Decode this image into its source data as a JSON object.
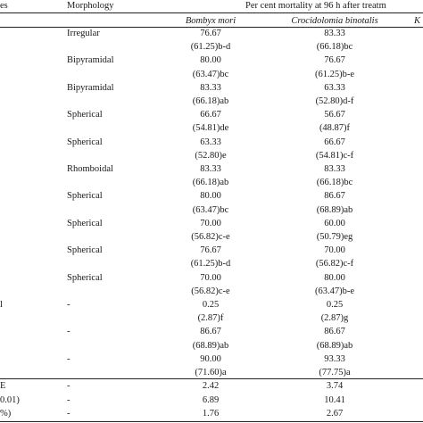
{
  "header": {
    "col0": "es",
    "col1": "Morphology",
    "col_span": "Per cent mortality at 96 h after treatm",
    "sub1": "Bombyx mori",
    "sub2": "Crocidolomia binotalis",
    "sub3": "K"
  },
  "rows": [
    {
      "label": "",
      "morph": "Irregular",
      "bm": "76.67",
      "cb": "83.33"
    },
    {
      "label": "",
      "morph": "",
      "bm": "(61.25)b-d",
      "cb": "(66.18)bc"
    },
    {
      "label": "",
      "morph": "Bipyramidal",
      "bm": "80.00",
      "cb": "76.67"
    },
    {
      "label": "",
      "morph": "",
      "bm": "(63.47)bc",
      "cb": "(61.25)b-e"
    },
    {
      "label": "",
      "morph": "Bipyramidal",
      "bm": "83.33",
      "cb": "63.33"
    },
    {
      "label": "",
      "morph": "",
      "bm": "(66.18)ab",
      "cb": "(52.80)d-f"
    },
    {
      "label": "",
      "morph": "Spherical",
      "bm": "66.67",
      "cb": "56.67"
    },
    {
      "label": "",
      "morph": "",
      "bm": "(54.81)de",
      "cb": "(48.87)f"
    },
    {
      "label": "",
      "morph": "Spherical",
      "bm": "63.33",
      "cb": "66.67"
    },
    {
      "label": "",
      "morph": "",
      "bm": "(52.80)e",
      "cb": "(54.81)c-f"
    },
    {
      "label": "",
      "morph": "Rhomboidal",
      "bm": "83.33",
      "cb": "83.33"
    },
    {
      "label": "",
      "morph": "",
      "bm": "(66.18)ab",
      "cb": "(66.18)bc"
    },
    {
      "label": "",
      "morph": "Spherical",
      "bm": "80.00",
      "cb": "86.67"
    },
    {
      "label": "",
      "morph": "",
      "bm": "(63.47)bc",
      "cb": "(68.89)ab"
    },
    {
      "label": "",
      "morph": "Spherical",
      "bm": "70.00",
      "cb": "60.00"
    },
    {
      "label": "",
      "morph": "",
      "bm": "(56.82)c-e",
      "cb": "(50.79)eg"
    },
    {
      "label": "",
      "morph": "Spherical",
      "bm": "76.67",
      "cb": "70.00"
    },
    {
      "label": "",
      "morph": "",
      "bm": "(61.25)b-d",
      "cb": "(56.82)c-f"
    },
    {
      "label": "",
      "morph": "Spherical",
      "bm": "70.00",
      "cb": "80.00"
    },
    {
      "label": "",
      "morph": "",
      "bm": "(56.82)c-e",
      "cb": "(63.47)b-e"
    },
    {
      "label": "l",
      "morph": "-",
      "bm": "0.25",
      "cb": "0.25"
    },
    {
      "label": "",
      "morph": "",
      "bm": "(2.87)f",
      "cb": "(2.87)g"
    },
    {
      "label": "",
      "morph": "-",
      "bm": "86.67",
      "cb": "86.67"
    },
    {
      "label": "",
      "morph": "",
      "bm": "(68.89)ab",
      "cb": "(68.89)ab"
    },
    {
      "label": "",
      "morph": "-",
      "bm": "90.00",
      "cb": "93.33"
    },
    {
      "label": "",
      "morph": "",
      "bm": "(71.60)a",
      "cb": "(77.75)a"
    }
  ],
  "footer": [
    {
      "label": "E",
      "morph": "-",
      "bm": "2.42",
      "cb": "3.74"
    },
    {
      "label": "0.01)",
      "morph": "-",
      "bm": "6.89",
      "cb": "10.41"
    },
    {
      "label": "%)",
      "morph": "-",
      "bm": "1.76",
      "cb": "2.67"
    }
  ]
}
